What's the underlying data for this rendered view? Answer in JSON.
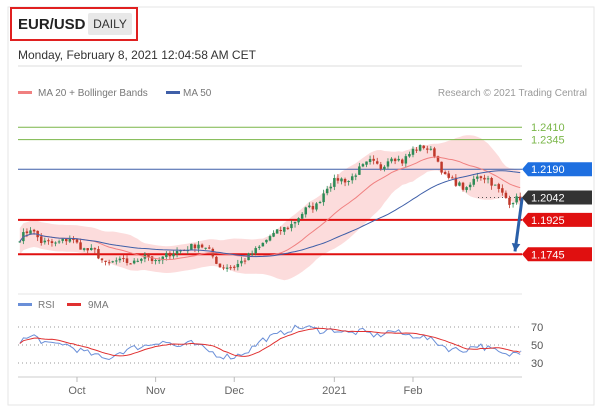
{
  "header": {
    "symbol": "EUR/USD",
    "period": "DAILY",
    "timestamp": "Monday, February 8, 2021 12:04:58 AM CET"
  },
  "legend": {
    "ma20_label": "MA 20 + Bollinger Bands",
    "ma50_label": "MA 50",
    "rsi_label": "RSI",
    "ma9_label": "9MA",
    "credit": "Research © 2021 Trading Central"
  },
  "colors": {
    "up_candle": "#2e8b57",
    "down_candle": "#c0392b",
    "ma20": "#f08080",
    "bollinger": "#fbd0d0",
    "ma50": "#3f5fa8",
    "resistance_green": "#7ab648",
    "support_red": "#e01010",
    "ma50_tag": "#1e6fe0",
    "price_tag": "#333333",
    "rsi": "#6a8fd8",
    "ma9": "#e03030",
    "arrow": "#2a5fa8"
  },
  "chart_data": {
    "type": "candlestick",
    "x_tick_labels": [
      "Oct",
      "Nov",
      "Dec",
      "2021",
      "Feb"
    ],
    "price_levels": [
      {
        "value": 1.241,
        "label": "1.2410",
        "kind": "resistance"
      },
      {
        "value": 1.2345,
        "label": "1.2345",
        "kind": "resistance"
      },
      {
        "value": 1.219,
        "label": "1.2190",
        "kind": "ma50"
      },
      {
        "value": 1.2042,
        "label": "1.2042",
        "kind": "last"
      },
      {
        "value": 1.1925,
        "label": "1.1925",
        "kind": "support"
      },
      {
        "value": 1.1745,
        "label": "1.1745",
        "kind": "support"
      }
    ],
    "y_range": [
      1.16,
      1.25
    ],
    "close_anchors": [
      [
        0,
        1.183
      ],
      [
        3,
        1.188
      ],
      [
        6,
        1.181
      ],
      [
        10,
        1.18
      ],
      [
        14,
        1.183
      ],
      [
        18,
        1.177
      ],
      [
        21,
        1.176
      ],
      [
        24,
        1.169
      ],
      [
        27,
        1.171
      ],
      [
        32,
        1.17
      ],
      [
        35,
        1.175
      ],
      [
        38,
        1.17
      ],
      [
        42,
        1.175
      ],
      [
        46,
        1.177
      ],
      [
        50,
        1.18
      ],
      [
        53,
        1.176
      ],
      [
        56,
        1.168
      ],
      [
        60,
        1.168
      ],
      [
        63,
        1.172
      ],
      [
        67,
        1.178
      ],
      [
        70,
        1.184
      ],
      [
        73,
        1.187
      ],
      [
        76,
        1.19
      ],
      [
        80,
        1.198
      ],
      [
        83,
        1.2
      ],
      [
        86,
        1.21
      ],
      [
        89,
        1.214
      ],
      [
        92,
        1.213
      ],
      [
        95,
        1.219
      ],
      [
        98,
        1.223
      ],
      [
        101,
        1.22
      ],
      [
        104,
        1.226
      ],
      [
        107,
        1.223
      ],
      [
        110,
        1.229
      ],
      [
        113,
        1.231
      ],
      [
        116,
        1.227
      ],
      [
        119,
        1.215
      ],
      [
        122,
        1.212
      ],
      [
        125,
        1.208
      ],
      [
        128,
        1.216
      ],
      [
        131,
        1.214
      ],
      [
        134,
        1.208
      ],
      [
        137,
        1.202
      ],
      [
        140,
        1.204
      ]
    ],
    "bar_count": 141,
    "rsi": {
      "levels": [
        70,
        50,
        30
      ],
      "y_range": [
        20,
        80
      ],
      "last": 43,
      "anchors": [
        [
          0,
          55
        ],
        [
          4,
          60
        ],
        [
          8,
          50
        ],
        [
          12,
          52
        ],
        [
          16,
          45
        ],
        [
          20,
          40
        ],
        [
          24,
          34
        ],
        [
          28,
          42
        ],
        [
          32,
          47
        ],
        [
          36,
          50
        ],
        [
          40,
          55
        ],
        [
          44,
          48
        ],
        [
          48,
          52
        ],
        [
          52,
          45
        ],
        [
          56,
          38
        ],
        [
          60,
          37
        ],
        [
          64,
          44
        ],
        [
          68,
          56
        ],
        [
          72,
          61
        ],
        [
          76,
          68
        ],
        [
          80,
          70
        ],
        [
          84,
          66
        ],
        [
          88,
          67
        ],
        [
          92,
          63
        ],
        [
          96,
          65
        ],
        [
          100,
          60
        ],
        [
          104,
          66
        ],
        [
          108,
          61
        ],
        [
          112,
          60
        ],
        [
          116,
          54
        ],
        [
          120,
          46
        ],
        [
          124,
          44
        ],
        [
          128,
          50
        ],
        [
          132,
          45
        ],
        [
          136,
          38
        ],
        [
          140,
          43
        ]
      ]
    }
  }
}
